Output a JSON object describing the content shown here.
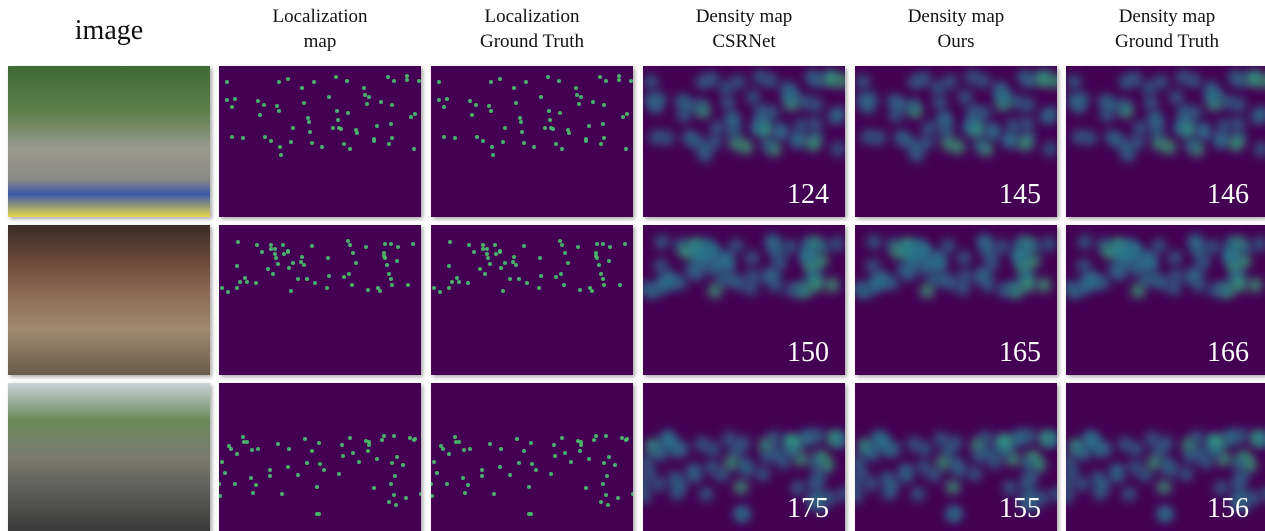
{
  "columns": [
    {
      "title": [
        "image"
      ]
    },
    {
      "title": [
        "Localization",
        "map"
      ]
    },
    {
      "title": [
        "Localization",
        "Ground Truth"
      ]
    },
    {
      "title": [
        "Density map",
        "CSRNet"
      ]
    },
    {
      "title": [
        "Density map",
        "Ours"
      ]
    },
    {
      "title": [
        "Density map",
        "Ground Truth"
      ]
    }
  ],
  "rows": [
    {
      "counts": [
        124,
        145,
        146
      ]
    },
    {
      "counts": [
        150,
        165,
        166
      ]
    },
    {
      "counts": [
        175,
        155,
        156
      ]
    }
  ]
}
